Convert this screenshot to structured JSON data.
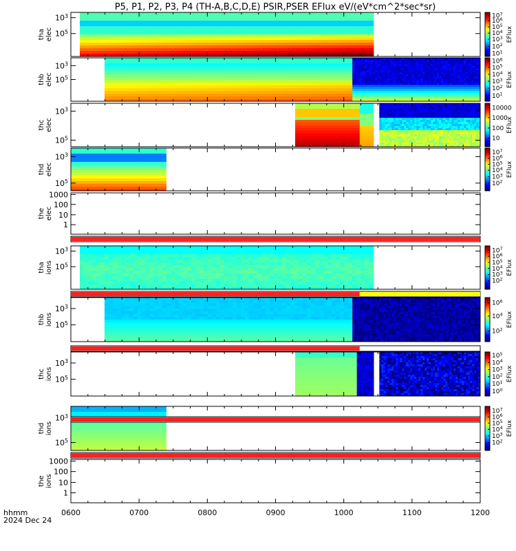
{
  "title": "P5, P1, P2, P3, P4 (TH-A,B,C,D,E) PSIR,PSER EFlux eV/(eV*cm^2*sec*sr)",
  "footer": {
    "line1": "hhmm",
    "line2": "2024 Dec 24"
  },
  "colorbar_title": "EFlux",
  "chart_data": {
    "type": "heatmap",
    "x_axis": {
      "range": [
        "0600",
        "1200"
      ],
      "ticks": [
        "0600",
        "0700",
        "0800",
        "0900",
        "1000",
        "1100",
        "1200"
      ],
      "label": "hhmm",
      "date": "2024 Dec 24"
    },
    "panels": [
      {
        "name": "tha elec",
        "label": [
          "tha",
          "elec"
        ],
        "data": true,
        "yticks": [
          [
            "10^5",
            0.48
          ],
          [
            "10^3",
            0.12
          ]
        ],
        "segments": [
          {
            "x0": 0.0219,
            "x1": 0.7397,
            "style": "tha_elec"
          }
        ],
        "cbar": [
          [
            "10^7",
            0.93
          ],
          [
            "10^6",
            0.81
          ],
          [
            "10^5",
            0.67
          ],
          [
            "10^4",
            0.53
          ],
          [
            "10^3",
            0.39
          ],
          [
            "10^2",
            0.23
          ],
          [
            "10^1",
            0.07
          ]
        ]
      },
      {
        "name": "thb elec",
        "label": [
          "thb",
          "elec"
        ],
        "data": true,
        "yticks": [
          [
            "10^5",
            0.5
          ],
          [
            "10^3",
            0.18
          ]
        ],
        "segments": [
          {
            "x0": 0.0822,
            "x1": 0.6877,
            "style": "thb_elec"
          },
          {
            "x0": 0.6877,
            "x1": 1.0,
            "style": "thb_elec_b"
          }
        ],
        "cbar": [
          [
            "10^6",
            0.93
          ],
          [
            "10^5",
            0.78
          ],
          [
            "10^4",
            0.62
          ],
          [
            "10^3",
            0.46
          ],
          [
            "10^2",
            0.3
          ],
          [
            "10^1",
            0.13
          ]
        ]
      },
      {
        "name": "thc elec",
        "label": [
          "thc",
          "elec"
        ],
        "data": true,
        "yticks": [
          [
            "10^5",
            0.85
          ],
          [
            "10^3",
            0.18
          ]
        ],
        "segments": [
          {
            "x0": 0.5479,
            "x1": 0.7055,
            "style": "thc_elec"
          },
          {
            "x0": 0.7055,
            "x1": 0.7397,
            "style": "thc_elec_b"
          },
          {
            "x0": 0.7534,
            "x1": 1.0,
            "style": "thc_elec_c"
          }
        ],
        "cbar": [
          [
            "10000",
            0.9
          ],
          [
            "1000",
            0.67
          ],
          [
            "100",
            0.43
          ],
          [
            "10",
            0.2
          ]
        ]
      },
      {
        "name": "thd elec",
        "label": [
          "thd",
          "elec"
        ],
        "data": true,
        "yticks": [
          [
            "10^5",
            0.82
          ],
          [
            "10^3",
            0.2
          ]
        ],
        "segments": [
          {
            "x0": 0.0,
            "x1": 0.2329,
            "style": "thd_elec"
          }
        ],
        "cbar": [
          [
            "10^7",
            0.9
          ],
          [
            "10^6",
            0.76
          ],
          [
            "10^5",
            0.62
          ],
          [
            "10^4",
            0.48
          ],
          [
            "10^3",
            0.33
          ],
          [
            "10^2",
            0.18
          ]
        ]
      },
      {
        "name": "the elec",
        "label": [
          "the",
          "elec"
        ],
        "data": false,
        "yticks": [
          [
            "1000",
            0.04
          ],
          [
            "100",
            0.28
          ],
          [
            "10",
            0.53
          ],
          [
            "1",
            0.77
          ]
        ],
        "segments": [],
        "cbar": []
      },
      {
        "name": "tha ions",
        "label": [
          "tha",
          "ions"
        ],
        "data": true,
        "yticks": [
          [
            "10^5",
            0.48
          ],
          [
            "10^3",
            0.12
          ]
        ],
        "segments": [
          {
            "x0": 0.0219,
            "x1": 0.7397,
            "style": "tha_ions"
          }
        ],
        "cbar": [
          [
            "10^7",
            0.9
          ],
          [
            "10^6",
            0.76
          ],
          [
            "10^5",
            0.62
          ],
          [
            "10^4",
            0.48
          ],
          [
            "10^3",
            0.34
          ],
          [
            "10^2",
            0.2
          ]
        ]
      },
      {
        "name": "thb ions",
        "label": [
          "thb",
          "ions"
        ],
        "data": true,
        "yticks": [
          [
            "10^5",
            0.62
          ],
          [
            "10^3",
            0.25
          ]
        ],
        "segments": [
          {
            "x0": 0.0822,
            "x1": 0.6877,
            "style": "thb_ions"
          },
          {
            "x0": 0.6877,
            "x1": 1.0,
            "style": "thb_ions_b"
          }
        ],
        "cbar": [
          [
            "10^6",
            0.88
          ],
          [
            "10^4",
            0.58
          ],
          [
            "10^2",
            0.24
          ]
        ]
      },
      {
        "name": "thc ions",
        "label": [
          "thc",
          "ions"
        ],
        "data": true,
        "yticks": [
          [
            "10^5",
            0.62
          ],
          [
            "10^3",
            0.25
          ]
        ],
        "segments": [
          {
            "x0": 0.5479,
            "x1": 0.6986,
            "style": "thc_ions"
          },
          {
            "x0": 0.6986,
            "x1": 0.7397,
            "style": "thc_ions_b"
          },
          {
            "x0": 0.7534,
            "x1": 1.0,
            "style": "thc_ions_c"
          }
        ],
        "cbar": [
          [
            "10^5",
            0.92
          ],
          [
            "10^4",
            0.76
          ],
          [
            "10^3",
            0.6
          ],
          [
            "10^2",
            0.44
          ],
          [
            "10^1",
            0.28
          ],
          [
            "10^0",
            0.11
          ]
        ]
      },
      {
        "name": "thd ions",
        "label": [
          "thd",
          "ions"
        ],
        "data": true,
        "yticks": [
          [
            "10^5",
            0.82
          ],
          [
            "10^3",
            0.26
          ]
        ],
        "segments": [
          {
            "x0": 0.0,
            "x1": 0.2329,
            "style": "thd_ions"
          }
        ],
        "cbar": [
          [
            "10^7",
            0.9
          ],
          [
            "10^6",
            0.76
          ],
          [
            "10^5",
            0.62
          ],
          [
            "10^4",
            0.48
          ],
          [
            "10^3",
            0.33
          ],
          [
            "10^2",
            0.18
          ]
        ]
      },
      {
        "name": "the ions",
        "label": [
          "the",
          "ions"
        ],
        "data": false,
        "yticks": [
          [
            "1000",
            0.04
          ],
          [
            "100",
            0.28
          ],
          [
            "10",
            0.53
          ],
          [
            "1",
            0.77
          ]
        ],
        "segments": [],
        "cbar": []
      }
    ],
    "flag_bars": [
      {
        "after": "the elec",
        "segments": [
          [
            0,
            1,
            "#ff2020"
          ]
        ]
      },
      {
        "after": "tha ions",
        "segments": [
          [
            0,
            0.7055,
            "#ff2020"
          ],
          [
            0.7055,
            1,
            "#ffff00"
          ]
        ]
      },
      {
        "after": "thb ions",
        "segments": [
          [
            0,
            0.7055,
            "#ff2020"
          ]
        ]
      },
      {
        "after": "thc ions",
        "segments": [
          [
            0,
            1,
            "#ff2020"
          ]
        ]
      },
      {
        "after": "thd ions",
        "segments": [
          [
            0,
            1,
            "#ff2020"
          ]
        ]
      }
    ]
  }
}
